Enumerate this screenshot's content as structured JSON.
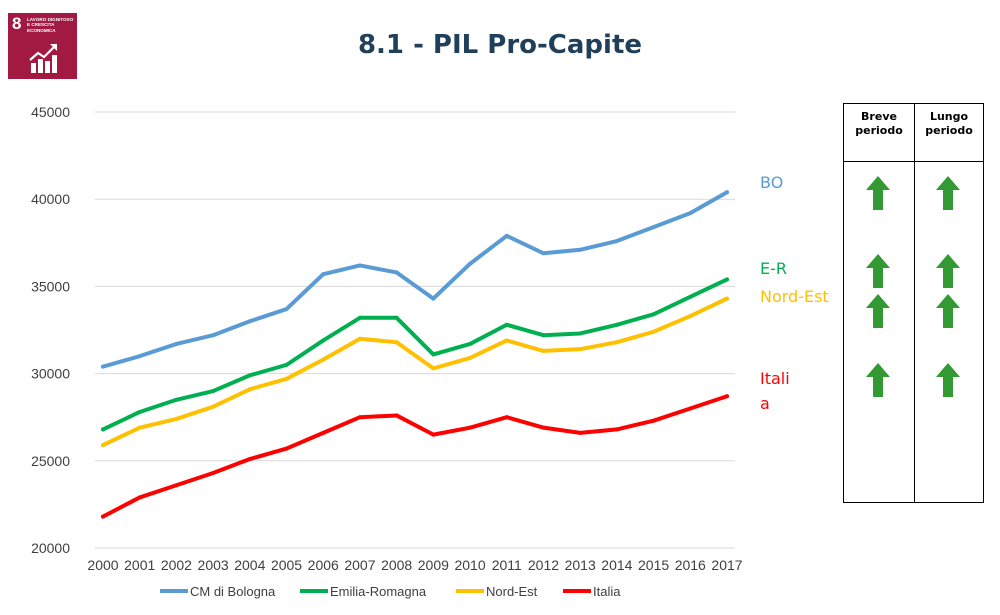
{
  "badge": {
    "number": "8",
    "lines": [
      "LAVORO DIGNITOSO",
      "E CRESCITA",
      "ECONOMICA"
    ],
    "color": "#a21942",
    "icon": "growth-chart-icon"
  },
  "title": "8.1 - PIL Pro-Capite",
  "chart_data": {
    "type": "line",
    "x": [
      "2000",
      "2001",
      "2002",
      "2003",
      "2004",
      "2005",
      "2006",
      "2007",
      "2008",
      "2009",
      "2010",
      "2011",
      "2012",
      "2013",
      "2014",
      "2015",
      "2016",
      "2017"
    ],
    "ylim": [
      20000,
      45000
    ],
    "yticks": [
      "20000",
      "25000",
      "30000",
      "35000",
      "40000",
      "45000"
    ],
    "grid": true,
    "legend_position": "bottom",
    "series": [
      {
        "name": "CM di Bologna",
        "color": "#5b9bd5",
        "end_label": [
          "BO"
        ],
        "values": [
          30400,
          31000,
          31700,
          32200,
          33000,
          33700,
          35700,
          36200,
          35800,
          34300,
          36300,
          37900,
          36900,
          37100,
          37600,
          38400,
          39200,
          40400
        ]
      },
      {
        "name": "Emilia-Romagna",
        "color": "#00b050",
        "end_label": [
          "E-R"
        ],
        "values": [
          26800,
          27800,
          28500,
          29000,
          29900,
          30500,
          31900,
          33200,
          33200,
          31100,
          31700,
          32800,
          32200,
          32300,
          32800,
          33400,
          34400,
          35400
        ]
      },
      {
        "name": "Nord-Est",
        "color": "#ffc000",
        "end_label": [
          "Nord-Est"
        ],
        "values": [
          25900,
          26900,
          27400,
          28100,
          29100,
          29700,
          30800,
          32000,
          31800,
          30300,
          30900,
          31900,
          31300,
          31400,
          31800,
          32400,
          33300,
          34300
        ]
      },
      {
        "name": "Italia",
        "color": "#ff0000",
        "end_label": [
          "Itali",
          "a"
        ],
        "values": [
          21800,
          22900,
          23600,
          24300,
          25100,
          25700,
          26600,
          27500,
          27600,
          26500,
          26900,
          27500,
          26900,
          26600,
          26800,
          27300,
          28000,
          28700
        ]
      }
    ]
  },
  "trend_table": {
    "columns": [
      [
        "Breve",
        "periodo"
      ],
      [
        "Lungo",
        "periodo"
      ]
    ],
    "arrow_color": "#339933",
    "rows": [
      {
        "series": "CM di Bologna",
        "short": "up-arrow-icon",
        "long": "up-arrow-icon"
      },
      {
        "series": "Emilia-Romagna",
        "short": "up-arrow-icon",
        "long": "up-arrow-icon"
      },
      {
        "series": "Nord-Est",
        "short": "up-arrow-icon",
        "long": "up-arrow-icon"
      },
      {
        "series": "Italia",
        "short": "up-arrow-icon",
        "long": "up-arrow-icon"
      }
    ]
  }
}
